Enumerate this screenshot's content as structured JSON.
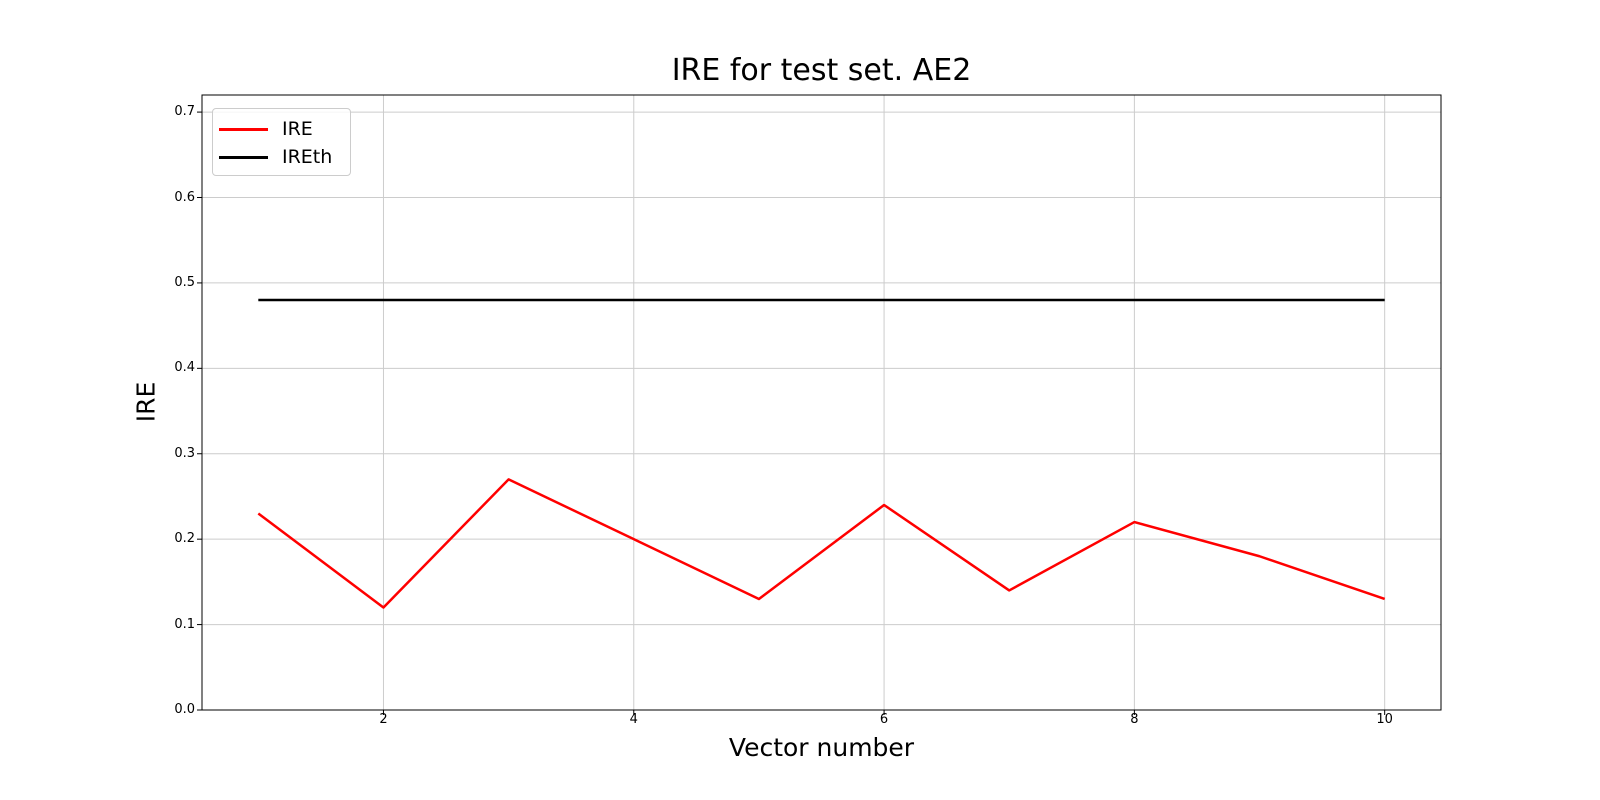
{
  "chart_data": {
    "type": "line",
    "title": "IRE for test set. AE2",
    "xlabel": "Vector number",
    "ylabel": "IRE",
    "x": [
      1,
      2,
      3,
      4,
      5,
      6,
      7,
      8,
      9,
      10
    ],
    "series": [
      {
        "name": "IRE",
        "color": "#ff0000",
        "values": [
          0.23,
          0.12,
          0.27,
          0.2,
          0.13,
          0.24,
          0.14,
          0.22,
          0.18,
          0.13
        ]
      },
      {
        "name": "IREth",
        "color": "#000000",
        "values": [
          0.48,
          0.48,
          0.48,
          0.48,
          0.48,
          0.48,
          0.48,
          0.48,
          0.48,
          0.48
        ]
      }
    ],
    "xlim": [
      0.55,
      10.45
    ],
    "ylim": [
      0,
      0.72
    ],
    "xticks": {
      "values": [
        2,
        4,
        6,
        8,
        10
      ],
      "labels": [
        "2",
        "4",
        "6",
        "8",
        "10"
      ]
    },
    "yticks": {
      "values": [
        0.0,
        0.1,
        0.2,
        0.3,
        0.4,
        0.5,
        0.6,
        0.7
      ],
      "labels": [
        "0.0",
        "0.1",
        "0.2",
        "0.3",
        "0.4",
        "0.5",
        "0.6",
        "0.7"
      ]
    },
    "grid": true,
    "legend": {
      "position": "upper left"
    },
    "colors": {
      "grid": "#cccccc",
      "spine": "#000000",
      "background": "#ffffff"
    }
  }
}
